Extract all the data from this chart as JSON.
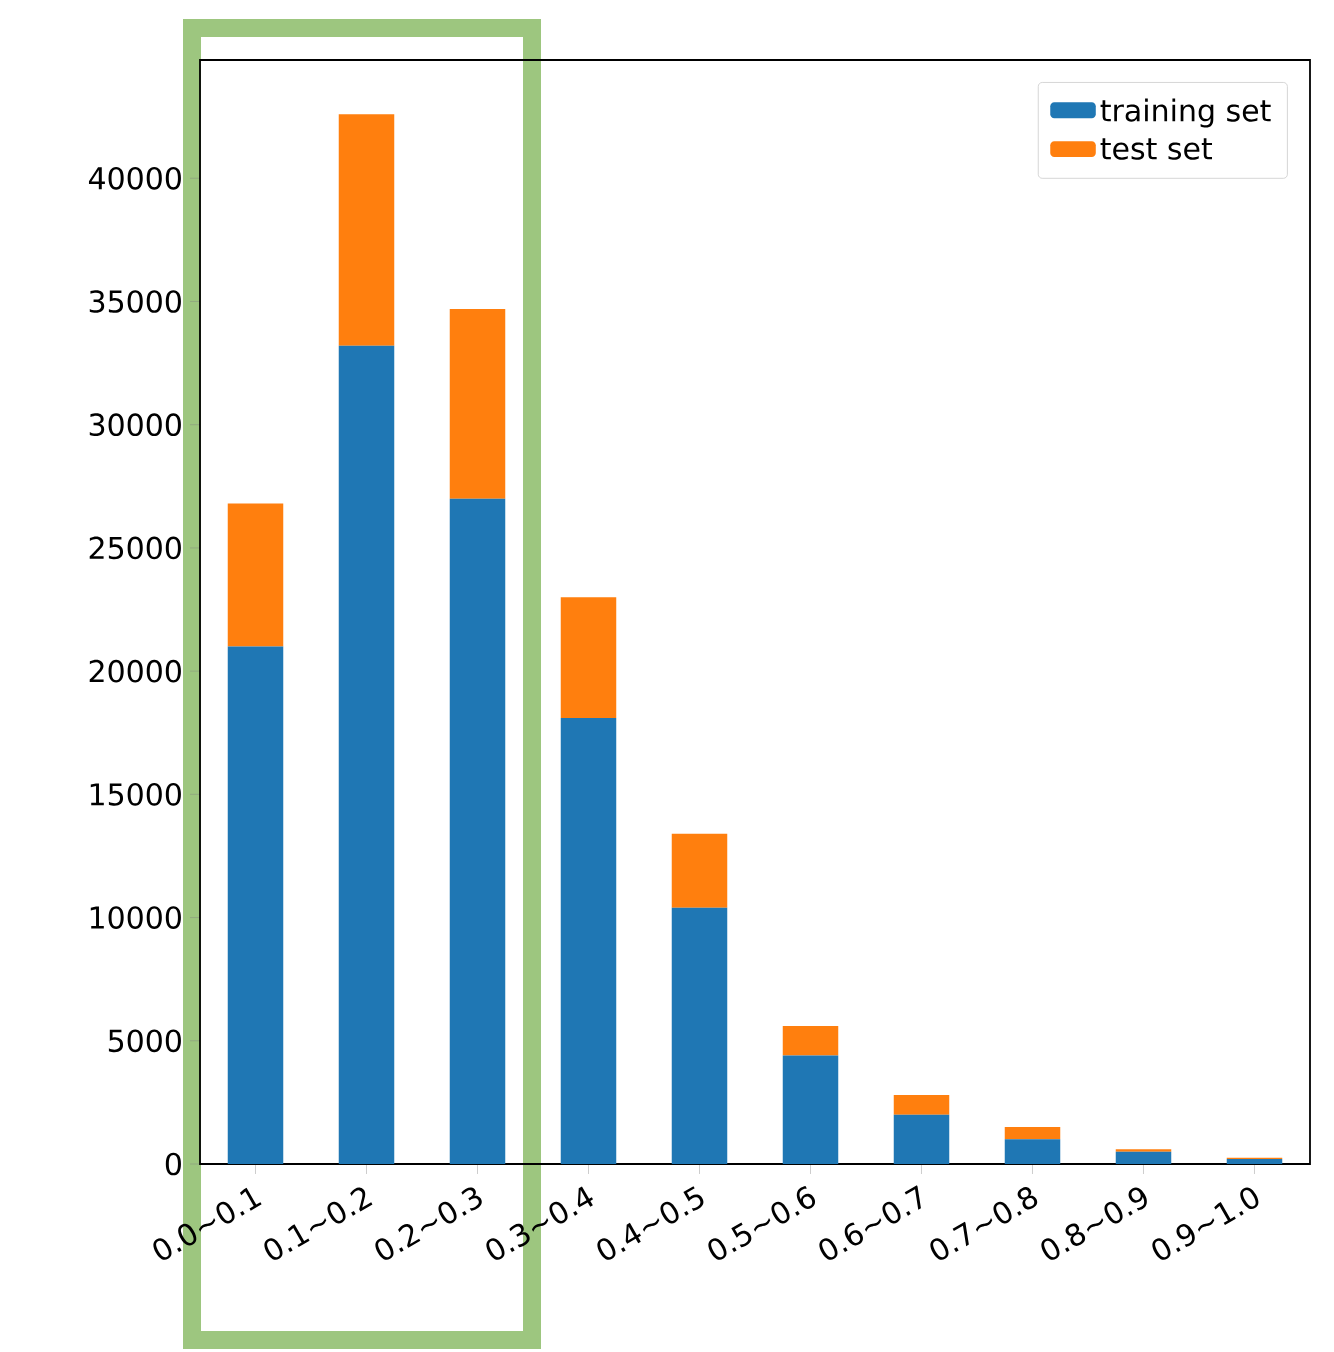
{
  "chart_data": {
    "type": "bar",
    "stacked": true,
    "categories": [
      "0.0~0.1",
      "0.1~0.2",
      "0.2~0.3",
      "0.3~0.4",
      "0.4~0.5",
      "0.5~0.6",
      "0.6~0.7",
      "0.7~0.8",
      "0.8~0.9",
      "0.9~1.0"
    ],
    "series": [
      {
        "name": "training set",
        "color": "#1f77b4",
        "values": [
          21000,
          33200,
          27000,
          18100,
          10400,
          4400,
          2000,
          1000,
          500,
          200
        ]
      },
      {
        "name": "test set",
        "color": "#ff7f0e",
        "values": [
          5800,
          9400,
          7700,
          4900,
          3000,
          1200,
          800,
          500,
          100,
          50
        ]
      }
    ],
    "ylim": [
      0,
      44800
    ],
    "yticks": [
      0,
      5000,
      10000,
      15000,
      20000,
      25000,
      30000,
      35000,
      40000
    ],
    "legend": "top right",
    "grid": false
  }
}
